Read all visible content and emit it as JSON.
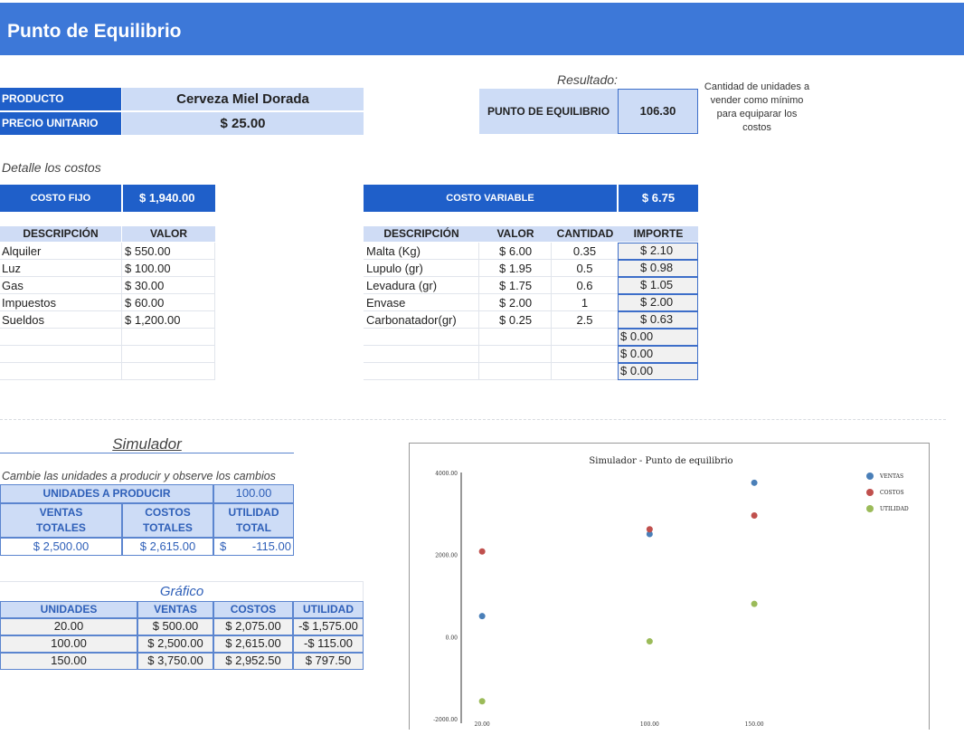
{
  "header": {
    "title": "Punto de Equilibrio"
  },
  "product": {
    "producto_label": "PRODUCTO",
    "producto_value": "Cerveza Miel Dorada",
    "precio_label": "PRECIO UNITARIO",
    "precio_value": "$ 25.00"
  },
  "resultado": {
    "title": "Resultado:",
    "label": "PUNTO DE EQUILIBRIO",
    "value": "106.30",
    "note": "Cantidad de unidades a vender como mínimo para equiparar los costos"
  },
  "detalle_label": "Detalle los costos",
  "fijo": {
    "label": "COSTO FIJO",
    "total": "$ 1,940.00",
    "col_desc": "DESCRIPCIÓN",
    "col_valor": "VALOR",
    "rows": [
      {
        "desc": "Alquiler",
        "valor": "$ 550.00"
      },
      {
        "desc": "Luz",
        "valor": "$ 100.00"
      },
      {
        "desc": "Gas",
        "valor": "$ 30.00"
      },
      {
        "desc": "Impuestos",
        "valor": "$ 60.00"
      },
      {
        "desc": "Sueldos",
        "valor": "$ 1,200.00"
      }
    ]
  },
  "variable": {
    "label": "COSTO VARIABLE",
    "total": "$ 6.75",
    "col_desc": "DESCRIPCIÓN",
    "col_valor": "VALOR",
    "col_cantidad": "CANTIDAD",
    "col_importe": "IMPORTE",
    "rows": [
      {
        "desc": "Malta (Kg)",
        "valor": "$ 6.00",
        "cantidad": "0.35",
        "importe": "$ 2.10"
      },
      {
        "desc": "Lupulo (gr)",
        "valor": "$ 1.95",
        "cantidad": "0.5",
        "importe": "$ 0.98"
      },
      {
        "desc": "Levadura (gr)",
        "valor": "$ 1.75",
        "cantidad": "0.6",
        "importe": "$ 1.05"
      },
      {
        "desc": "Envase",
        "valor": "$ 2.00",
        "cantidad": "1",
        "importe": "$ 2.00"
      },
      {
        "desc": "Carbonatador(gr)",
        "valor": "$ 0.25",
        "cantidad": "2.5",
        "importe": "$ 0.63"
      },
      {
        "desc": "",
        "valor": "",
        "cantidad": "",
        "importe": "$ 0.00"
      },
      {
        "desc": "",
        "valor": "",
        "cantidad": "",
        "importe": "$ 0.00"
      },
      {
        "desc": "",
        "valor": "",
        "cantidad": "",
        "importe": "$ 0.00"
      }
    ]
  },
  "simulador": {
    "title": "Simulador",
    "instr": "Cambie las unidades a producir y observe los cambios",
    "unidades_label": "UNIDADES A PRODUCIR",
    "unidades_value": "100.00",
    "ventas_label_1": "VENTAS",
    "ventas_label_2": "TOTALES",
    "costos_label_1": "COSTOS",
    "costos_label_2": "TOTALES",
    "utilidad_label_1": "UTILIDAD",
    "utilidad_label_2": "TOTAL",
    "ventas_value": "$ 2,500.00",
    "costos_value": "$ 2,615.00",
    "utilidad_sign": "$",
    "utilidad_value": "-115.00"
  },
  "grafico": {
    "title": "Gráfico",
    "headers": [
      "UNIDADES",
      "VENTAS",
      "COSTOS",
      "UTILIDAD"
    ],
    "rows": [
      [
        "20.00",
        "$ 500.00",
        "$ 2,075.00",
        "-$ 1,575.00"
      ],
      [
        "100.00",
        "$ 2,500.00",
        "$ 2,615.00",
        "-$ 115.00"
      ],
      [
        "150.00",
        "$ 3,750.00",
        "$ 2,952.50",
        "$ 797.50"
      ]
    ]
  },
  "chart_data": {
    "type": "scatter",
    "title": "Simulador - Punto de equilibrio",
    "x": [
      20,
      100,
      150
    ],
    "x_tick_labels": [
      "20.00",
      "100.00",
      "150.00"
    ],
    "y_tick_values": [
      -2000,
      0,
      2000,
      4000
    ],
    "y_tick_labels": [
      "-2000.00",
      "0.00",
      "2000.00",
      "4000.00"
    ],
    "ylim": [
      -2000,
      4000
    ],
    "legend_position": "top-right",
    "series": [
      {
        "name": "VENTAS",
        "color": "#4a7fb8",
        "values": [
          500,
          2500,
          3750
        ]
      },
      {
        "name": "COSTOS",
        "color": "#c0504d",
        "values": [
          2075,
          2615,
          2952.5
        ]
      },
      {
        "name": "UTILIDAD",
        "color": "#9bbb59",
        "values": [
          -1575,
          -115,
          797.5
        ]
      }
    ]
  }
}
